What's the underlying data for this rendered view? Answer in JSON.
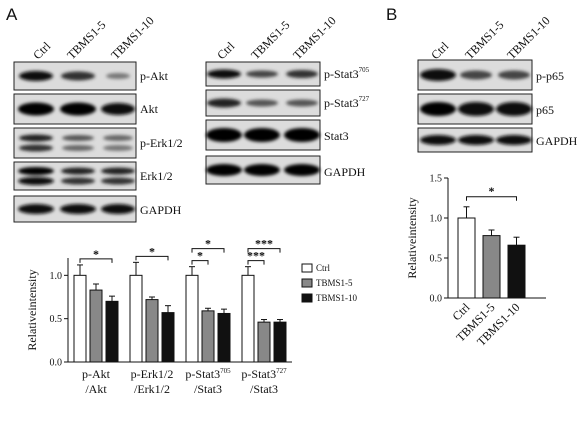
{
  "panels": {
    "a": "A",
    "b": "B"
  },
  "lanes": [
    "Ctrl",
    "TBMS1-5",
    "TBMS1-10"
  ],
  "blots_a_left": [
    "p-Akt",
    "Akt",
    "p-Erk1/2",
    "Erk1/2",
    "GAPDH"
  ],
  "blots_a_right": [
    {
      "base": "p-Stat3",
      "sup": "705"
    },
    {
      "base": "p-Stat3",
      "sup": "727"
    },
    {
      "base": "Stat3",
      "sup": ""
    },
    {
      "base": "GAPDH",
      "sup": ""
    }
  ],
  "blots_b": [
    "p-p65",
    "p65",
    "GAPDH"
  ],
  "chart_data": [
    {
      "type": "bar",
      "panel": "A",
      "ylabel": "Relativeintensity",
      "ylim": [
        0,
        1.2
      ],
      "yticks": [
        "0.0",
        "0.5",
        "1.0"
      ],
      "categories": [
        {
          "line1": "p-Akt",
          "line1_sup": "",
          "line2": "/Akt"
        },
        {
          "line1": "p-Erk1/2",
          "line1_sup": "",
          "line2": "/Erk1/2"
        },
        {
          "line1": "p-Stat3",
          "line1_sup": "705",
          "line2": "/Stat3"
        },
        {
          "line1": "p-Stat3",
          "line1_sup": "727",
          "line2": "/Stat3"
        }
      ],
      "series": [
        {
          "name": "Ctrl",
          "color": "#ffffff",
          "values": [
            1.0,
            1.0,
            1.0,
            1.0
          ],
          "errors": [
            0.12,
            0.15,
            0.1,
            0.1
          ]
        },
        {
          "name": "TBMS1-5",
          "color": "#888888",
          "values": [
            0.83,
            0.72,
            0.59,
            0.46
          ],
          "errors": [
            0.07,
            0.03,
            0.03,
            0.03
          ]
        },
        {
          "name": "TBMS1-10",
          "color": "#111111",
          "values": [
            0.7,
            0.57,
            0.56,
            0.46
          ],
          "errors": [
            0.06,
            0.08,
            0.05,
            0.03
          ]
        }
      ],
      "significance": [
        {
          "group": 0,
          "from": 0,
          "to": 2,
          "label": "*"
        },
        {
          "group": 1,
          "from": 0,
          "to": 2,
          "label": "*"
        },
        {
          "group": 2,
          "from": 0,
          "to": 1,
          "label": "*"
        },
        {
          "group": 2,
          "from": 0,
          "to": 2,
          "label": "*"
        },
        {
          "group": 3,
          "from": 0,
          "to": 1,
          "label": "***"
        },
        {
          "group": 3,
          "from": 0,
          "to": 2,
          "label": "***"
        }
      ],
      "legend_position": "right"
    },
    {
      "type": "bar",
      "panel": "B",
      "ylabel": "Relativeintensity",
      "ylim": [
        0,
        1.5
      ],
      "yticks": [
        "0.0",
        "0.5",
        "1.0",
        "1.5"
      ],
      "categories": [
        "Ctrl",
        "TBMS1-5",
        "TBMS1-10"
      ],
      "values": [
        1.0,
        0.78,
        0.66
      ],
      "errors": [
        0.14,
        0.07,
        0.1
      ],
      "colors": [
        "#ffffff",
        "#888888",
        "#111111"
      ],
      "significance": [
        {
          "from": 0,
          "to": 2,
          "label": "*"
        }
      ]
    }
  ]
}
